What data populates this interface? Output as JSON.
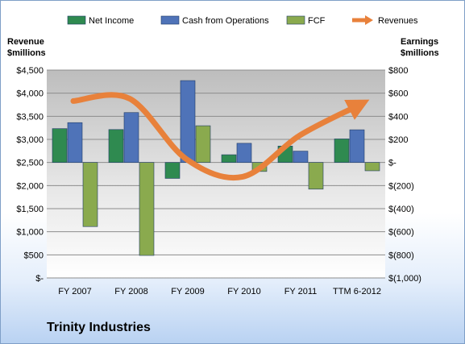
{
  "company": "Trinity Industries",
  "chart_data": {
    "type": "bar",
    "categories": [
      "FY 2007",
      "FY 2008",
      "FY 2009",
      "FY 2010",
      "FY 2011",
      "TTM 6-2012"
    ],
    "series": [
      {
        "name": "Net Income",
        "axis": "right",
        "color": "#2f8a50",
        "values": [
          293,
          285,
          -138,
          67,
          142,
          204
        ]
      },
      {
        "name": "Cash from Operations",
        "axis": "right",
        "color": "#4f73b8",
        "values": [
          345,
          432,
          709,
          166,
          98,
          283
        ]
      },
      {
        "name": "FCF",
        "axis": "right",
        "color": "#8aaa4e",
        "values": [
          -555,
          -805,
          318,
          -78,
          -231,
          -72
        ]
      },
      {
        "name": "Revenues",
        "axis": "left",
        "type": "line",
        "color": "#e8813b",
        "values": [
          3830,
          3880,
          2575,
          2190,
          3075,
          3705
        ]
      }
    ],
    "yleft": {
      "label": [
        "Revenue",
        "$millions"
      ],
      "lim": [
        0,
        4500
      ],
      "ticks": [
        "$-",
        "$500",
        "$1,000",
        "$1,500",
        "$2,000",
        "$2,500",
        "$3,000",
        "$3,500",
        "$4,000",
        "$4,500"
      ]
    },
    "yright": {
      "label": [
        "Earnings",
        "$millions"
      ],
      "lim": [
        -1000,
        800
      ],
      "ticks": [
        "$(1,000)",
        "$(800)",
        "$(600)",
        "$(400)",
        "$(200)",
        "$-",
        "$200",
        "$400",
        "$600",
        "$800"
      ]
    },
    "legend": [
      "Net Income",
      "Cash from Operations",
      "FCF",
      "Revenues"
    ],
    "legend_position": "top",
    "grid": true
  }
}
